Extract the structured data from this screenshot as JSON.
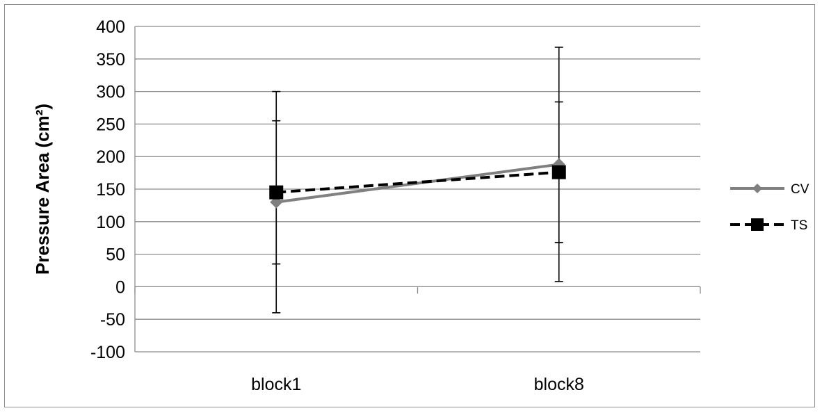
{
  "chart_data": {
    "type": "line",
    "categories": [
      "block1",
      "block8"
    ],
    "ylabel": "Pressure Area (cm²)",
    "xlabel": "",
    "ylim": [
      -100,
      400
    ],
    "yticks": [
      -100,
      -50,
      0,
      50,
      100,
      150,
      200,
      250,
      300,
      350,
      400
    ],
    "grid": true,
    "legend_position": "right",
    "series": [
      {
        "name": "CV",
        "values": [
          130,
          188
        ],
        "error": [
          170,
          180
        ],
        "color": "#808080",
        "line_style": "solid",
        "marker": "diamond"
      },
      {
        "name": "TS",
        "values": [
          145,
          176
        ],
        "error": [
          110,
          108
        ],
        "color": "#000000",
        "line_style": "dashed",
        "marker": "square"
      }
    ]
  }
}
